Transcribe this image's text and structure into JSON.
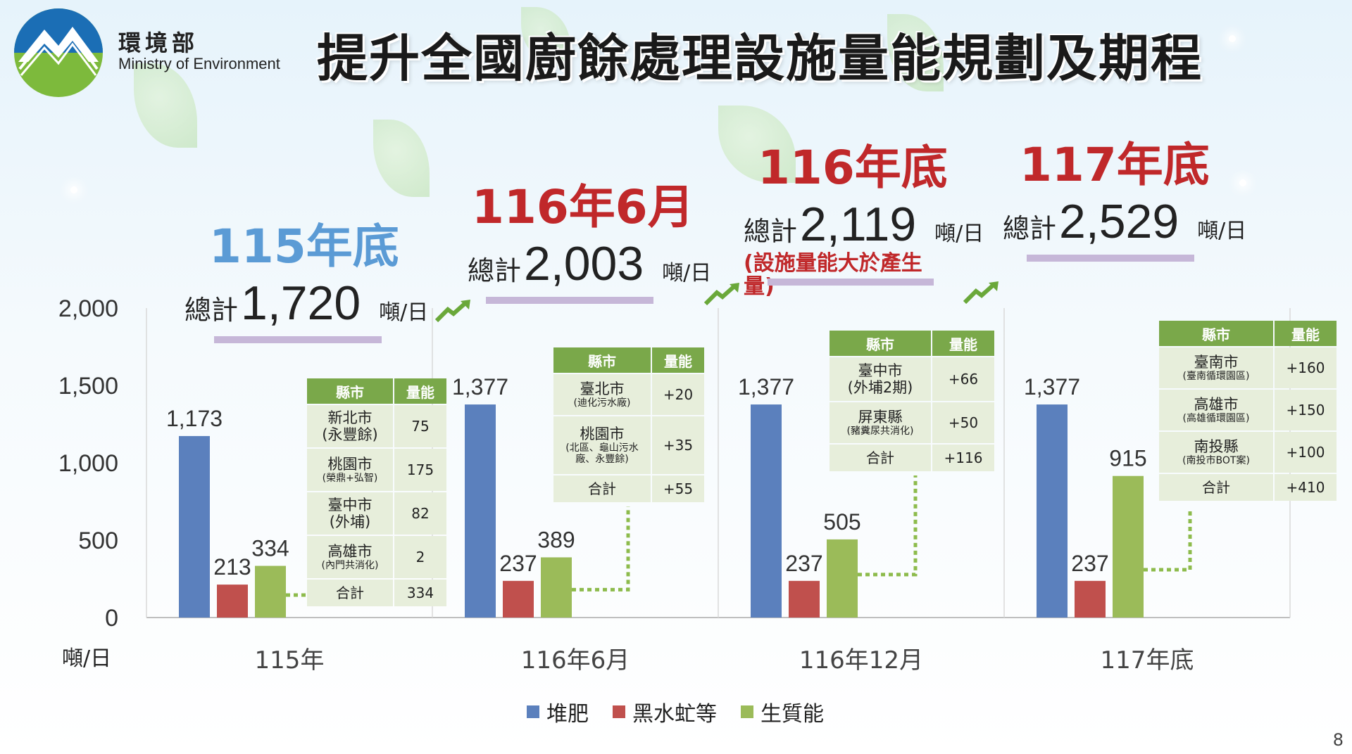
{
  "header": {
    "org_name_zh": "環境部",
    "org_name_en": "Ministry of Environment",
    "title": "提升全國廚餘處理設施量能規劃及期程",
    "page_number": "8"
  },
  "colors": {
    "compost": "#5b80bd",
    "bsf": "#c0504d",
    "bioenergy": "#9bbb59",
    "table_header": "#7aa84a",
    "table_cell": "#e7eedb",
    "highlight_red": "#c0282a",
    "highlight_blue": "#5b9bd5"
  },
  "annotations": [
    {
      "period": "115年底",
      "total_prefix": "總計",
      "total": "1,720",
      "unit": "噸/日",
      "color": "#5b9bd5",
      "note": ""
    },
    {
      "period": "116年6月",
      "total_prefix": "總計",
      "total": "2,003",
      "unit": "噸/日",
      "color": "#c0282a",
      "note": ""
    },
    {
      "period": "116年底",
      "total_prefix": "總計",
      "total": "2,119",
      "unit": "噸/日",
      "color": "#c0282a",
      "note": "(設施量能大於產生量)"
    },
    {
      "period": "117年底",
      "total_prefix": "總計",
      "total": "2,529",
      "unit": "噸/日",
      "color": "#c0282a",
      "note": ""
    }
  ],
  "tables": [
    {
      "header": [
        "縣市",
        "量能"
      ],
      "rows": [
        {
          "county": "新北市",
          "detail": "(永豐餘)",
          "cap": "75"
        },
        {
          "county": "桃園市",
          "detail": "(榮鼎+弘智)",
          "cap": "175"
        },
        {
          "county": "臺中市",
          "detail": "(外埔)",
          "cap": "82"
        },
        {
          "county": "高雄市",
          "detail": "(內門共消化)",
          "cap": "2"
        }
      ],
      "total_label": "合計",
      "total": "334"
    },
    {
      "header": [
        "縣市",
        "量能"
      ],
      "rows": [
        {
          "county": "臺北市",
          "detail": "(迪化污水廠)",
          "cap": "+20"
        },
        {
          "county": "桃園市",
          "detail": "(北區、龜山污水廠、永豐餘)",
          "cap": "+35"
        }
      ],
      "total_label": "合計",
      "total": "+55"
    },
    {
      "header": [
        "縣市",
        "量能"
      ],
      "rows": [
        {
          "county": "臺中市",
          "detail": "(外埔2期)",
          "cap": "+66"
        },
        {
          "county": "屏東縣",
          "detail": "(豬糞尿共消化)",
          "cap": "+50"
        }
      ],
      "total_label": "合計",
      "total": "+116"
    },
    {
      "header": [
        "縣市",
        "量能"
      ],
      "rows": [
        {
          "county": "臺南市",
          "detail": "(臺南循環園區)",
          "cap": "+160"
        },
        {
          "county": "高雄市",
          "detail": "(高雄循環園區)",
          "cap": "+150"
        },
        {
          "county": "南投縣",
          "detail": "(南投市BOT案)",
          "cap": "+100"
        }
      ],
      "total_label": "合計",
      "total": "+410"
    }
  ],
  "chart_data": {
    "type": "bar",
    "categories": [
      "115年",
      "116年6月",
      "116年12月",
      "117年底"
    ],
    "series": [
      {
        "name": "堆肥",
        "values": [
          1173,
          1377,
          1377,
          1377
        ],
        "labels": [
          "1,173",
          "1,377",
          "1,377",
          "1,377"
        ],
        "color": "#5b80bd"
      },
      {
        "name": "黑水虻等",
        "values": [
          213,
          237,
          237,
          237
        ],
        "labels": [
          "213",
          "237",
          "237",
          "237"
        ],
        "color": "#c0504d"
      },
      {
        "name": "生質能",
        "values": [
          334,
          389,
          505,
          915
        ],
        "labels": [
          "334",
          "389",
          "505",
          "915"
        ],
        "color": "#9bbb59"
      }
    ],
    "y_ticks": [
      "0",
      "500",
      "1,000",
      "1,500",
      "2,000"
    ],
    "y_tick_values": [
      0,
      500,
      1000,
      1500,
      2000
    ],
    "ylabel": "噸/日",
    "ylim": [
      0,
      2000
    ],
    "legend_position": "bottom",
    "grid": false
  }
}
